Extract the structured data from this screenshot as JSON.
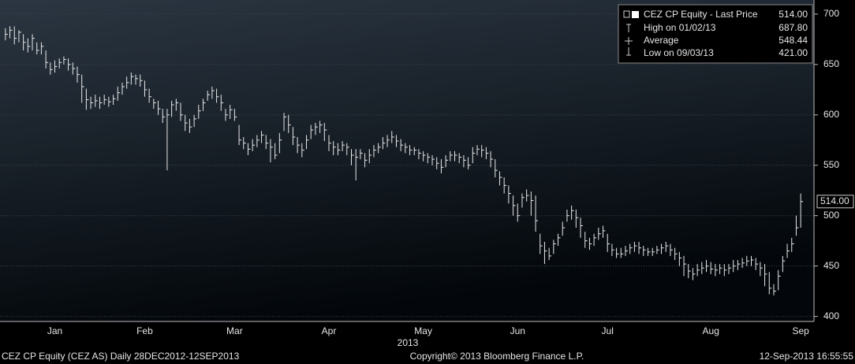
{
  "chart_data": {
    "type": "ohlc",
    "x_label": "2013",
    "categories": [
      null,
      null,
      null,
      null,
      null,
      null,
      null,
      null,
      null,
      null,
      null,
      "Jan",
      null,
      null,
      null,
      null,
      null,
      null,
      null,
      null,
      null,
      null,
      null,
      null,
      null,
      null,
      null,
      null,
      null,
      null,
      null,
      "Feb",
      null,
      null,
      null,
      null,
      null,
      null,
      null,
      null,
      null,
      null,
      null,
      null,
      null,
      null,
      null,
      null,
      null,
      null,
      null,
      "Mar",
      null,
      null,
      null,
      null,
      null,
      null,
      null,
      null,
      null,
      null,
      null,
      null,
      null,
      null,
      null,
      null,
      null,
      null,
      null,
      null,
      "Apr",
      null,
      null,
      null,
      null,
      null,
      null,
      null,
      null,
      null,
      null,
      null,
      null,
      null,
      null,
      null,
      null,
      null,
      null,
      null,
      null,
      "May",
      null,
      null,
      null,
      null,
      null,
      null,
      null,
      null,
      null,
      null,
      null,
      null,
      null,
      null,
      null,
      null,
      null,
      null,
      null,
      null,
      "Jun",
      null,
      null,
      null,
      null,
      null,
      null,
      null,
      null,
      null,
      null,
      null,
      null,
      null,
      null,
      null,
      null,
      null,
      null,
      null,
      "Jul",
      null,
      null,
      null,
      null,
      null,
      null,
      null,
      null,
      null,
      null,
      null,
      null,
      null,
      null,
      null,
      null,
      null,
      null,
      null,
      null,
      null,
      null,
      "Aug",
      null,
      null,
      null,
      null,
      null,
      null,
      null,
      null,
      null,
      null,
      null,
      null,
      null,
      null,
      null,
      null,
      null,
      null,
      null,
      "Sep"
    ],
    "series": [
      {
        "name": "CEZ CP Equity - Last Price",
        "color": "#e8e8e8",
        "high": [
          686,
          688,
          687.8,
          684,
          680,
          676,
          680,
          672,
          672,
          664,
          652,
          654,
          656,
          658,
          656,
          652,
          648,
          640,
          626,
          618,
          620,
          618,
          620,
          618,
          620,
          628,
          632,
          638,
          642,
          640,
          640,
          634,
          626,
          616,
          614,
          606,
          606,
          614,
          616,
          612,
          600,
          596,
          600,
          610,
          616,
          624,
          628,
          626,
          620,
          606,
          610,
          606,
          590,
          578,
          572,
          576,
          580,
          584,
          580,
          576,
          572,
          582,
          602,
          600,
          588,
          578,
          572,
          580,
          590,
          592,
          594,
          592,
          580,
          574,
          572,
          574,
          572,
          566,
          566,
          566,
          562,
          566,
          570,
          572,
          578,
          580,
          584,
          580,
          576,
          572,
          570,
          568,
          566,
          564,
          562,
          560,
          558,
          556,
          560,
          564,
          564,
          562,
          560,
          558,
          568,
          570,
          570,
          568,
          564,
          556,
          544,
          538,
          530,
          520,
          512,
          522,
          526,
          524,
          520,
          482,
          474,
          468,
          476,
          482,
          494,
          506,
          510,
          506,
          498,
          484,
          478,
          482,
          488,
          490,
          482,
          472,
          468,
          468,
          470,
          472,
          474,
          474,
          470,
          468,
          468,
          470,
          472,
          474,
          472,
          468,
          464,
          460,
          452,
          448,
          452,
          454,
          456,
          454,
          452,
          452,
          452,
          452,
          456,
          456,
          458,
          460,
          460,
          458,
          454,
          452,
          444,
          432,
          446,
          460,
          472,
          478,
          500,
          522
        ],
        "low": [
          674,
          676,
          670,
          672,
          664,
          662,
          664,
          660,
          660,
          646,
          640,
          642,
          646,
          650,
          644,
          640,
          632,
          612,
          605,
          606,
          608,
          606,
          610,
          608,
          610,
          614,
          620,
          626,
          630,
          630,
          628,
          618,
          612,
          606,
          600,
          592,
          545,
          598,
          604,
          594,
          584,
          582,
          588,
          596,
          604,
          614,
          616,
          612,
          604,
          594,
          596,
          594,
          570,
          566,
          560,
          564,
          568,
          572,
          566,
          553,
          556,
          562,
          584,
          582,
          570,
          562,
          558,
          566,
          576,
          580,
          582,
          574,
          564,
          560,
          560,
          564,
          560,
          550,
          535,
          556,
          548,
          552,
          558,
          562,
          566,
          568,
          572,
          568,
          564,
          562,
          560,
          560,
          556,
          554,
          552,
          550,
          546,
          542,
          548,
          554,
          554,
          552,
          548,
          546,
          552,
          560,
          558,
          556,
          548,
          538,
          530,
          522,
          512,
          500,
          494,
          508,
          514,
          500,
          484,
          462,
          452,
          456,
          462,
          470,
          480,
          494,
          496,
          488,
          478,
          468,
          466,
          470,
          476,
          478,
          464,
          460,
          458,
          458,
          460,
          462,
          464,
          462,
          460,
          460,
          460,
          462,
          462,
          464,
          460,
          456,
          450,
          440,
          438,
          436,
          440,
          442,
          444,
          442,
          440,
          442,
          440,
          442,
          444,
          446,
          448,
          450,
          450,
          446,
          440,
          430,
          422,
          421,
          426,
          444,
          458,
          464,
          480,
          488
        ],
        "close": [
          680,
          684,
          676,
          682,
          672,
          668,
          676,
          664,
          668,
          652,
          645,
          648,
          652,
          655,
          650,
          646,
          640,
          628,
          615,
          612,
          614,
          612,
          615,
          613,
          616,
          622,
          628,
          632,
          638,
          636,
          634,
          625,
          618,
          612,
          606,
          598,
          600,
          610,
          612,
          600,
          592,
          588,
          596,
          604,
          612,
          620,
          624,
          618,
          612,
          600,
          605,
          598,
          575,
          572,
          566,
          570,
          575,
          580,
          572,
          568,
          560,
          575,
          598,
          590,
          578,
          570,
          565,
          575,
          585,
          588,
          590,
          585,
          572,
          568,
          565,
          570,
          568,
          560,
          558,
          562,
          555,
          560,
          565,
          568,
          572,
          575,
          578,
          574,
          570,
          568,
          565,
          565,
          562,
          560,
          558,
          556,
          552,
          548,
          555,
          560,
          560,
          558,
          555,
          550,
          562,
          566,
          565,
          562,
          556,
          545,
          538,
          530,
          522,
          510,
          500,
          518,
          520,
          515,
          495,
          470,
          465,
          460,
          472,
          478,
          488,
          500,
          505,
          498,
          490,
          475,
          472,
          478,
          482,
          485,
          472,
          466,
          462,
          462,
          465,
          468,
          470,
          468,
          466,
          464,
          464,
          466,
          468,
          470,
          466,
          462,
          458,
          452,
          445,
          442,
          446,
          448,
          450,
          447,
          446,
          448,
          446,
          448,
          450,
          452,
          453,
          455,
          456,
          452,
          448,
          442,
          428,
          425,
          440,
          455,
          465,
          472,
          488,
          514
        ],
        "last": 514,
        "last_label": "514.00"
      }
    ],
    "legend_stats": [
      {
        "name": "High on 01/02/13",
        "value": 687.8,
        "label": "687.80"
      },
      {
        "name": "Average",
        "value": 548.44,
        "label": "548.44"
      },
      {
        "name": "Low on 09/03/13",
        "value": 421,
        "label": "421.00"
      }
    ],
    "ylim": [
      395,
      714
    ],
    "yticks": [
      400,
      450,
      500,
      550,
      600,
      650,
      700
    ],
    "grid": true,
    "footer": {
      "left": "CEZ CP Equity (CEZ AS)   Daily 28DEC2012-12SEP2013",
      "center": "Copyright© 2013 Bloomberg Finance L.P.",
      "right": "12-Sep-2013 16:55:55"
    }
  }
}
